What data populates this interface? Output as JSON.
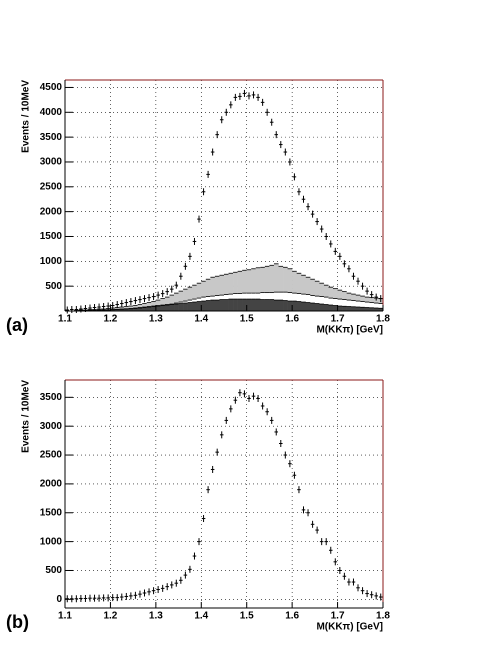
{
  "chart_data": [
    {
      "type": "histogram",
      "panel_label": "(a)",
      "ylabel": "Events / 10MeV",
      "xlabel": "M(KKπ) [GeV]",
      "bins": [
        1.1,
        1.11,
        1.12,
        1.13,
        1.14,
        1.15,
        1.16,
        1.17,
        1.18,
        1.19,
        1.2,
        1.21,
        1.22,
        1.23,
        1.24,
        1.25,
        1.26,
        1.27,
        1.28,
        1.29,
        1.3,
        1.31,
        1.32,
        1.33,
        1.34,
        1.35,
        1.36,
        1.37,
        1.38,
        1.39,
        1.4,
        1.41,
        1.42,
        1.43,
        1.44,
        1.45,
        1.46,
        1.47,
        1.48,
        1.49,
        1.5,
        1.51,
        1.52,
        1.53,
        1.54,
        1.55,
        1.56,
        1.57,
        1.58,
        1.59,
        1.6,
        1.61,
        1.62,
        1.63,
        1.64,
        1.65,
        1.66,
        1.67,
        1.68,
        1.69,
        1.7,
        1.71,
        1.72,
        1.73,
        1.74,
        1.75,
        1.76,
        1.77,
        1.78,
        1.79,
        1.8
      ],
      "series": [
        {
          "style": "fill",
          "color": "#c8c8c8",
          "values": [
            0,
            0,
            10,
            20,
            20,
            30,
            30,
            40,
            40,
            50,
            60,
            70,
            80,
            90,
            100,
            110,
            130,
            150,
            170,
            190,
            220,
            250,
            280,
            320,
            360,
            400,
            440,
            480,
            520,
            560,
            600,
            640,
            680,
            700,
            720,
            740,
            760,
            780,
            800,
            820,
            830,
            850,
            870,
            880,
            900,
            920,
            950,
            900,
            880,
            850,
            800,
            760,
            720,
            680,
            640,
            600,
            560,
            520,
            480,
            450,
            420,
            390,
            360,
            340,
            320,
            300,
            280,
            270,
            260,
            250
          ]
        },
        {
          "style": "fill",
          "color": "#ffffff",
          "values": [
            0,
            0,
            5,
            10,
            10,
            15,
            15,
            20,
            20,
            25,
            30,
            35,
            40,
            45,
            50,
            60,
            70,
            80,
            90,
            100,
            110,
            120,
            130,
            140,
            160,
            180,
            200,
            220,
            240,
            260,
            280,
            290,
            300,
            310,
            320,
            330,
            340,
            350,
            350,
            360,
            360,
            360,
            360,
            370,
            370,
            370,
            380,
            380,
            380,
            370,
            360,
            350,
            340,
            330,
            310,
            300,
            290,
            280,
            260,
            250,
            240,
            230,
            220,
            210,
            200,
            190,
            180,
            170,
            160,
            150
          ]
        },
        {
          "style": "fill",
          "color": "#444444",
          "values": [
            0,
            0,
            0,
            5,
            5,
            10,
            10,
            15,
            15,
            20,
            25,
            30,
            35,
            40,
            45,
            50,
            60,
            70,
            80,
            90,
            100,
            110,
            120,
            130,
            140,
            150,
            160,
            170,
            180,
            190,
            200,
            210,
            220,
            220,
            230,
            230,
            240,
            240,
            240,
            240,
            240,
            240,
            240,
            230,
            230,
            230,
            220,
            220,
            210,
            200,
            200,
            190,
            180,
            170,
            160,
            150,
            140,
            130,
            120,
            110,
            100,
            95,
            90,
            85,
            80,
            75,
            70,
            65,
            60,
            55
          ]
        },
        {
          "style": "points",
          "color": "#000000",
          "values": [
            20,
            30,
            30,
            40,
            50,
            60,
            70,
            80,
            90,
            100,
            110,
            130,
            150,
            170,
            190,
            210,
            230,
            250,
            270,
            290,
            320,
            350,
            390,
            440,
            520,
            700,
            900,
            1100,
            1400,
            1850,
            2400,
            2750,
            3200,
            3550,
            3850,
            4000,
            4150,
            4300,
            4320,
            4380,
            4330,
            4350,
            4300,
            4200,
            4000,
            3800,
            3550,
            3350,
            3200,
            3000,
            2700,
            2400,
            2250,
            2100,
            1950,
            1800,
            1650,
            1500,
            1350,
            1200,
            1100,
            950,
            850,
            700,
            600,
            500,
            400,
            330,
            280,
            250
          ]
        }
      ],
      "xlim": [
        1.1,
        1.8
      ],
      "xticks": [
        1.1,
        1.2,
        1.3,
        1.4,
        1.5,
        1.6,
        1.7,
        1.8
      ],
      "ylim": [
        0,
        4650
      ],
      "yticks": [
        500,
        1000,
        1500,
        2000,
        2500,
        3000,
        3500,
        4000,
        4500
      ],
      "grid": true
    },
    {
      "type": "histogram",
      "panel_label": "(b)",
      "ylabel": "Events / 10MeV",
      "xlabel": "M(KKπ) [GeV]",
      "bins": [
        1.1,
        1.11,
        1.12,
        1.13,
        1.14,
        1.15,
        1.16,
        1.17,
        1.18,
        1.19,
        1.2,
        1.21,
        1.22,
        1.23,
        1.24,
        1.25,
        1.26,
        1.27,
        1.28,
        1.29,
        1.3,
        1.31,
        1.32,
        1.33,
        1.34,
        1.35,
        1.36,
        1.37,
        1.38,
        1.39,
        1.4,
        1.41,
        1.42,
        1.43,
        1.44,
        1.45,
        1.46,
        1.47,
        1.48,
        1.49,
        1.5,
        1.51,
        1.52,
        1.53,
        1.54,
        1.55,
        1.56,
        1.57,
        1.58,
        1.59,
        1.6,
        1.61,
        1.62,
        1.63,
        1.64,
        1.65,
        1.66,
        1.67,
        1.68,
        1.69,
        1.7,
        1.71,
        1.72,
        1.73,
        1.74,
        1.75,
        1.76,
        1.77,
        1.78,
        1.79,
        1.8
      ],
      "series": [
        {
          "style": "points",
          "color": "#000000",
          "values": [
            10,
            10,
            10,
            15,
            15,
            20,
            20,
            20,
            25,
            25,
            30,
            30,
            40,
            50,
            60,
            70,
            90,
            110,
            130,
            150,
            170,
            190,
            220,
            250,
            280,
            330,
            420,
            520,
            750,
            1000,
            1400,
            1900,
            2250,
            2550,
            2850,
            3100,
            3300,
            3450,
            3580,
            3560,
            3480,
            3520,
            3480,
            3350,
            3250,
            3100,
            2900,
            2700,
            2500,
            2350,
            2150,
            1900,
            1550,
            1500,
            1300,
            1200,
            1000,
            1000,
            850,
            650,
            500,
            400,
            300,
            300,
            200,
            150,
            100,
            80,
            60,
            40
          ]
        }
      ],
      "xlim": [
        1.1,
        1.8
      ],
      "xticks": [
        1.1,
        1.2,
        1.3,
        1.4,
        1.5,
        1.6,
        1.7,
        1.8
      ],
      "ylim": [
        -150,
        3800
      ],
      "yticks": [
        0,
        500,
        1000,
        1500,
        2000,
        2500,
        3000,
        3500
      ],
      "grid": true
    }
  ]
}
